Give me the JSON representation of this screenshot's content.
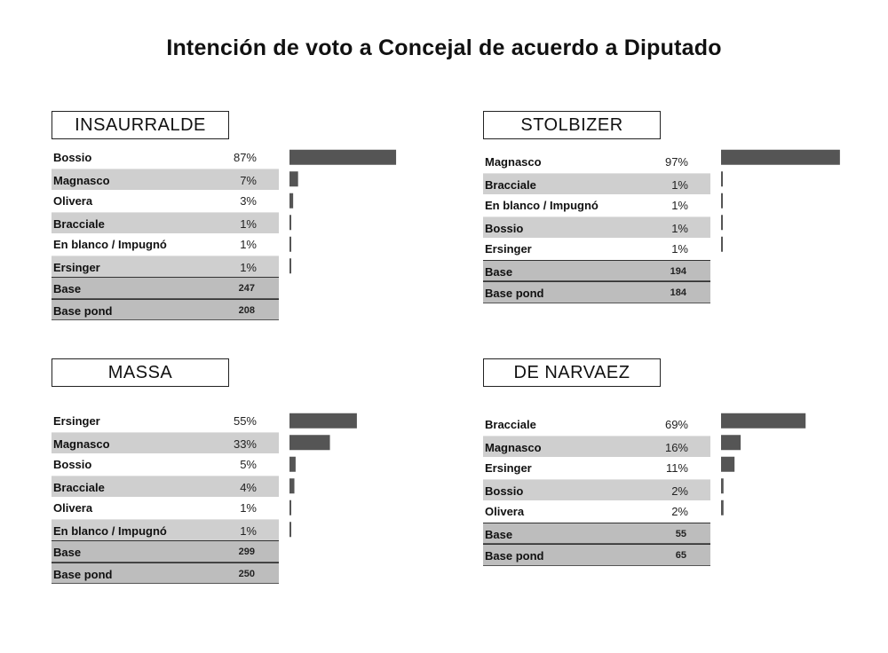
{
  "title": "Intención de voto a Concejal de acuerdo a Diputado",
  "colors": {
    "bar": "#555555",
    "row_shade": "#cfcfcf",
    "base_shade": "#bdbdbd"
  },
  "chart_data": [
    {
      "type": "bar",
      "title": "INSAURRALDE",
      "categories": [
        "Bossio",
        "Magnasco",
        "Olivera",
        "Bracciale",
        "En blanco / Impugnó",
        "Ersinger"
      ],
      "values": [
        87,
        7,
        3,
        1,
        1,
        1
      ],
      "value_labels": [
        "87%",
        "7%",
        "3%",
        "1%",
        "1%",
        "1%"
      ],
      "base_label": "Base",
      "base_value": "247",
      "base_pond_label": "Base pond",
      "base_pond_value": "208",
      "xlim": [
        0,
        100
      ]
    },
    {
      "type": "bar",
      "title": "STOLBIZER",
      "categories": [
        "Magnasco",
        "Bracciale",
        "En blanco / Impugnó",
        "Bossio",
        "Ersinger"
      ],
      "values": [
        97,
        1,
        1,
        1,
        1
      ],
      "value_labels": [
        "97%",
        "1%",
        "1%",
        "1%",
        "1%"
      ],
      "base_label": "Base",
      "base_value": "194",
      "base_pond_label": "Base pond",
      "base_pond_value": "184",
      "xlim": [
        0,
        100
      ]
    },
    {
      "type": "bar",
      "title": "MASSA",
      "categories": [
        "Ersinger",
        "Magnasco",
        "Bossio",
        "Bracciale",
        "Olivera",
        "En blanco / Impugnó"
      ],
      "values": [
        55,
        33,
        5,
        4,
        1,
        1
      ],
      "value_labels": [
        "55%",
        "33%",
        "5%",
        "4%",
        "1%",
        "1%"
      ],
      "base_label": "Base",
      "base_value": "299",
      "base_pond_label": "Base pond",
      "base_pond_value": "250",
      "xlim": [
        0,
        100
      ]
    },
    {
      "type": "bar",
      "title": "DE NARVAEZ",
      "categories": [
        "Bracciale",
        "Magnasco",
        "Ersinger",
        "Bossio",
        "Olivera"
      ],
      "values": [
        69,
        16,
        11,
        2,
        2
      ],
      "value_labels": [
        "69%",
        "16%",
        "11%",
        "2%",
        "2%"
      ],
      "base_label": "Base",
      "base_value": "55",
      "base_pond_label": "Base pond",
      "base_pond_value": "65",
      "xlim": [
        0,
        100
      ]
    }
  ]
}
